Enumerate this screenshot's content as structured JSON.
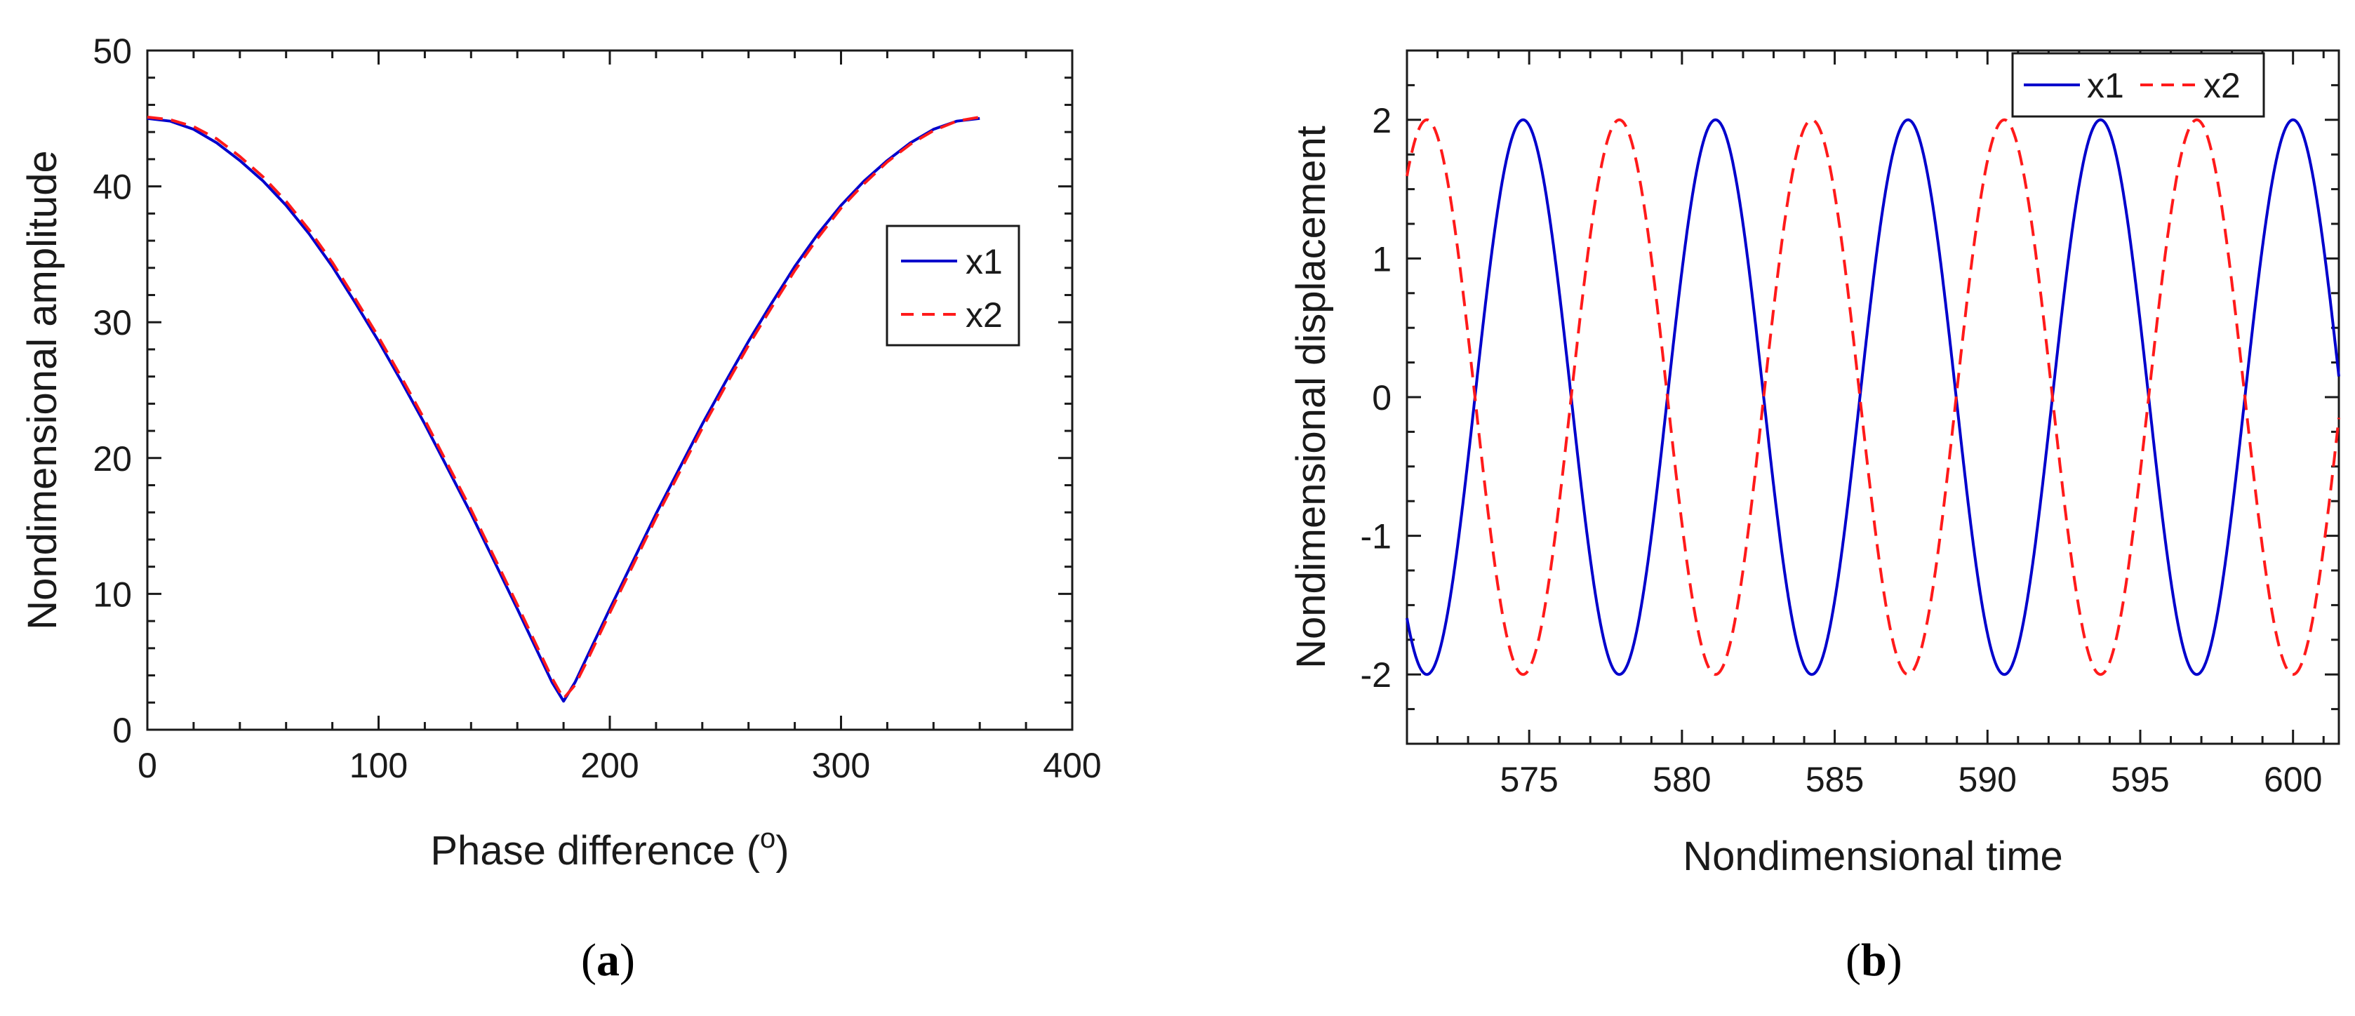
{
  "colors": {
    "x1": "#0000cc",
    "x2": "#ff1a1a",
    "axis": "#1a1a1a"
  },
  "chart_data": [
    {
      "type": "line",
      "panel_label": {
        "open": "(",
        "letter": "a",
        "close": ")"
      },
      "title": "",
      "xlabel": {
        "main": "Phase difference (",
        "sup": "o",
        "close": ")"
      },
      "ylabel": "Nondimensional amplitude",
      "xlim": [
        0,
        400
      ],
      "ylim": [
        0,
        50
      ],
      "x_ticks": [
        0,
        100,
        200,
        300,
        400
      ],
      "y_ticks": [
        0,
        10,
        20,
        30,
        40,
        50
      ],
      "x_minor_step": 20,
      "y_minor_step": 2,
      "legend": {
        "placement": "right",
        "entries": [
          "x1",
          "x2"
        ]
      },
      "series": [
        {
          "name": "x1",
          "style": "solid",
          "x": [
            0,
            10,
            20,
            30,
            40,
            50,
            60,
            70,
            80,
            90,
            100,
            110,
            120,
            130,
            140,
            150,
            160,
            170,
            175,
            180,
            185,
            190,
            200,
            210,
            220,
            230,
            240,
            250,
            260,
            270,
            280,
            290,
            300,
            310,
            320,
            330,
            340,
            350,
            360
          ],
          "y": [
            45,
            44.8,
            44.2,
            43.2,
            41.9,
            40.4,
            38.6,
            36.5,
            34.1,
            31.4,
            28.6,
            25.6,
            22.5,
            19.2,
            15.9,
            12.4,
            8.9,
            5.3,
            3.5,
            2.1,
            3.5,
            5.3,
            8.9,
            12.4,
            15.9,
            19.2,
            22.5,
            25.6,
            28.6,
            31.4,
            34.1,
            36.5,
            38.6,
            40.4,
            41.9,
            43.2,
            44.2,
            44.8,
            45
          ]
        },
        {
          "name": "x2",
          "style": "dashed",
          "x": [
            0,
            10,
            20,
            30,
            40,
            50,
            60,
            70,
            80,
            90,
            100,
            110,
            120,
            130,
            140,
            150,
            160,
            170,
            175,
            180,
            185,
            190,
            200,
            210,
            220,
            230,
            240,
            250,
            260,
            270,
            280,
            290,
            300,
            310,
            320,
            330,
            340,
            350,
            360
          ],
          "y": [
            45.1,
            44.9,
            44.4,
            43.5,
            42.2,
            40.7,
            38.9,
            36.8,
            34.4,
            31.7,
            28.9,
            25.9,
            22.8,
            19.5,
            16.2,
            12.7,
            9.2,
            5.6,
            3.8,
            2.3,
            3.3,
            5.0,
            8.6,
            12.1,
            15.6,
            18.9,
            22.2,
            25.3,
            28.3,
            31.1,
            33.8,
            36.2,
            38.4,
            40.2,
            41.8,
            43.1,
            44.1,
            44.8,
            45.1
          ]
        }
      ]
    },
    {
      "type": "line",
      "panel_label": {
        "open": "(",
        "letter": "b",
        "close": ")"
      },
      "title": "",
      "xlabel": "Nondimensional time",
      "ylabel": "Nondimensional displacement",
      "xlim": [
        571,
        601.5
      ],
      "ylim": [
        -2.5,
        2.5
      ],
      "x_ticks": [
        575,
        580,
        585,
        590,
        595,
        600
      ],
      "y_ticks": [
        -2,
        -1,
        0,
        1,
        2
      ],
      "x_minor_step": 1,
      "y_minor_step": 0.25,
      "legend": {
        "placement": "top-right",
        "entries": [
          "x1",
          "x2"
        ]
      },
      "series": [
        {
          "name": "x1",
          "style": "solid",
          "amplitude": 2,
          "period": 6.3,
          "peak_times": [
            574.8,
            581.1,
            587.4,
            593.7,
            600.0
          ]
        },
        {
          "name": "x2",
          "style": "dashed",
          "amplitude": 2,
          "period": 6.3,
          "peak_times": [
            571.65,
            577.95,
            584.25,
            590.55,
            596.85
          ]
        }
      ]
    }
  ]
}
